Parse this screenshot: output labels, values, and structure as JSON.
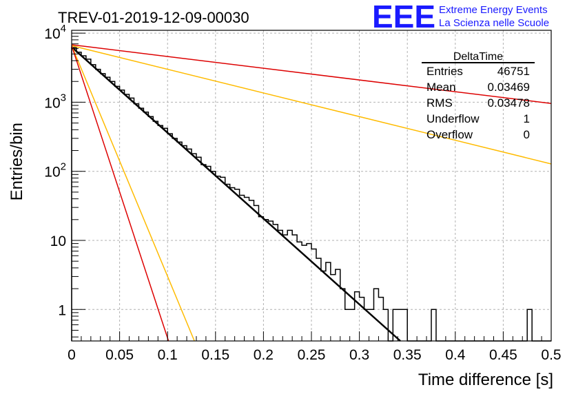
{
  "chart_data": {
    "type": "histogram",
    "title": "TREV-01-2019-12-09-00030",
    "xlabel": "Time difference [s]",
    "ylabel": "Entries/bin",
    "xlim": [
      0,
      0.5
    ],
    "ylim": [
      0.35,
      11000
    ],
    "yscale": "log",
    "grid": true,
    "x_tick_labels": [
      "0",
      "0.05",
      "0.1",
      "0.15",
      "0.2",
      "0.25",
      "0.3",
      "0.35",
      "0.4",
      "0.45",
      "0.5"
    ],
    "x_ticks": [
      0,
      0.05,
      0.1,
      0.15,
      0.2,
      0.25,
      0.3,
      0.35,
      0.4,
      0.45,
      0.5
    ],
    "y_tick_labels": [
      {
        "value": 1,
        "base": "1",
        "exp": ""
      },
      {
        "value": 10,
        "base": "10",
        "exp": ""
      },
      {
        "value": 100,
        "base": "10",
        "exp": "2"
      },
      {
        "value": 1000,
        "base": "10",
        "exp": "3"
      },
      {
        "value": 10000,
        "base": "10",
        "exp": "4"
      }
    ],
    "logo": {
      "mark": "EEE",
      "line1": "Extreme Energy Events",
      "line2": "La Scienza nelle Scuole",
      "color": "#1a1aff"
    },
    "stats_box": {
      "title": "DeltaTime",
      "rows": [
        {
          "label": "Entries",
          "value": "46751"
        },
        {
          "label": "Mean",
          "value": "0.03469"
        },
        {
          "label": "RMS",
          "value": "0.03478"
        },
        {
          "label": "Underflow",
          "value": "1"
        },
        {
          "label": "Overflow",
          "value": "0"
        }
      ]
    },
    "histogram": {
      "bin_width": 0.005,
      "values": [
        6200,
        5300,
        4700,
        4200,
        3500,
        3000,
        2600,
        2300,
        2000,
        1700,
        1500,
        1300,
        1150,
        950,
        820,
        720,
        620,
        530,
        460,
        420,
        350,
        300,
        265,
        235,
        210,
        180,
        160,
        125,
        118,
        100,
        85,
        82,
        65,
        58,
        55,
        45,
        42,
        38,
        32,
        22,
        20,
        19,
        17,
        14,
        12,
        14,
        12,
        9.5,
        8.5,
        9,
        7.5,
        5.5,
        3.6,
        4.8,
        3.2,
        3.8,
        2.0,
        1.0,
        1.0,
        1.8,
        1.5,
        1.0,
        1.0,
        2.0,
        1.5,
        1.0,
        0,
        1.0,
        1.0,
        1.0,
        0,
        0,
        0,
        0,
        0,
        1.0,
        0,
        0,
        0,
        0,
        0,
        0,
        0,
        0,
        0,
        0,
        0,
        0,
        0,
        0,
        0,
        0,
        0,
        0,
        0,
        1.0,
        0,
        0,
        0,
        0
      ]
    },
    "curves": [
      {
        "color": "#000000",
        "width": 2.5,
        "points": [
          [
            0,
            6300
          ],
          [
            0.3427,
            0.35
          ]
        ]
      },
      {
        "color": "#dd0000",
        "width": 1.5,
        "points": [
          [
            0,
            6800
          ],
          [
            0.5,
            960
          ]
        ]
      },
      {
        "color": "#ffbb00",
        "width": 1.5,
        "points": [
          [
            0,
            6600
          ],
          [
            0.5,
            128
          ]
        ]
      },
      {
        "color": "#ffbb00",
        "width": 1.5,
        "points": [
          [
            0,
            6600
          ],
          [
            0.128,
            0.35
          ]
        ]
      },
      {
        "color": "#dd0000",
        "width": 1.5,
        "points": [
          [
            0,
            6600
          ],
          [
            0.101,
            0.35
          ]
        ]
      }
    ]
  }
}
